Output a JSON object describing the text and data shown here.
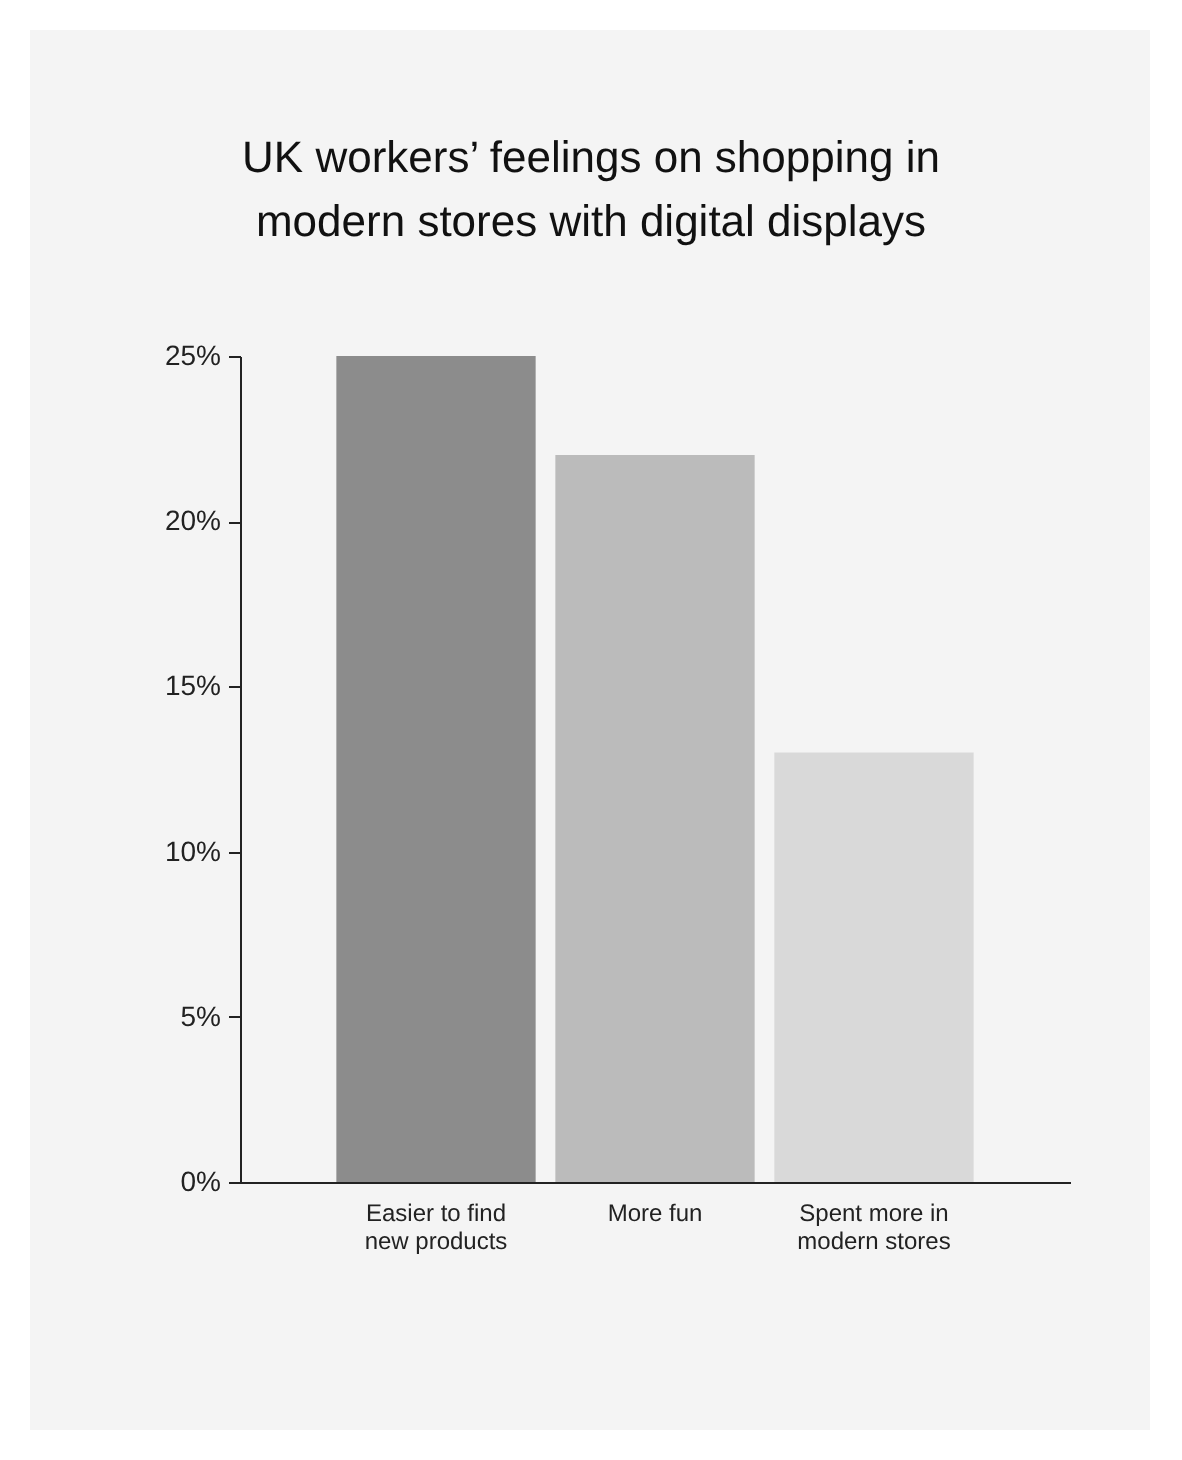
{
  "chart_data": {
    "type": "bar",
    "title": "UK workers’ feelings on shopping in modern stores with digital displays",
    "categories": [
      "Easier to find new products",
      "More fun",
      "Spent more in modern stores"
    ],
    "values": [
      25,
      22,
      13
    ],
    "colors": [
      "#8c8c8c",
      "#bbbbbb",
      "#d9d9d9"
    ],
    "ylim": [
      0,
      25
    ],
    "yticks": [
      {
        "value": 0,
        "label": "0%"
      },
      {
        "value": 5,
        "label": "5%"
      },
      {
        "value": 10,
        "label": "10%"
      },
      {
        "value": 15,
        "label": "15%"
      },
      {
        "value": 20,
        "label": "20%"
      },
      {
        "value": 25,
        "label": "25%"
      }
    ],
    "grid": false
  }
}
